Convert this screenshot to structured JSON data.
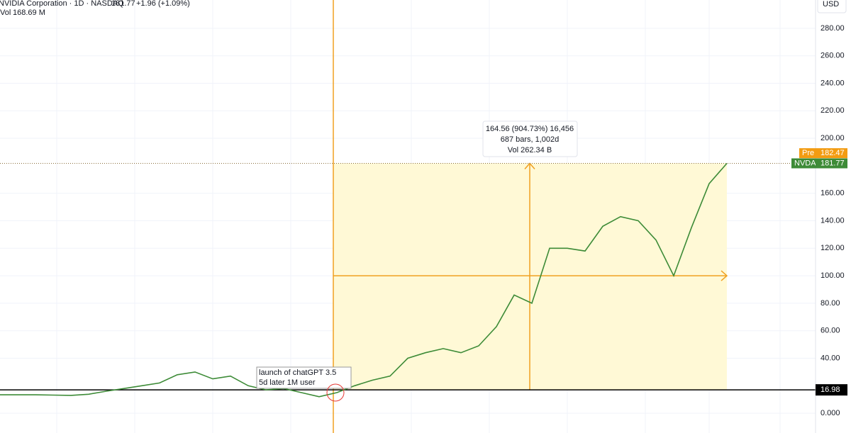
{
  "chart_data": {
    "type": "line",
    "header": {
      "title": "NVIDIA Corporation · 1D · NASDAQ",
      "price": "181.77",
      "change": "+1.96 (+1.09%)",
      "vol_label": "Vol",
      "vol": "168.69 M"
    },
    "currency": "USD",
    "series": [
      {
        "name": "NVDA",
        "color": "#3d8b37",
        "values": [
          13.4,
          13.4,
          13.4,
          13.2,
          13,
          13.8,
          16,
          18,
          20,
          22,
          28,
          30,
          25,
          27,
          20,
          17,
          18,
          15,
          12,
          15,
          20,
          24,
          27,
          40,
          44,
          47,
          44,
          49,
          63,
          86,
          80,
          120,
          120,
          118,
          136,
          143,
          140,
          126,
          100,
          135,
          167,
          181.77
        ]
      }
    ],
    "last": 181.77,
    "pre": {
      "name": "Pre",
      "value": 182.47
    },
    "level": 16.98,
    "ylim": [
      -14.4,
      300.6
    ],
    "yticks": [
      {
        "value": 0,
        "label": "0.000"
      },
      {
        "value": 40,
        "label": "40.00"
      },
      {
        "value": 60,
        "label": "60.00"
      },
      {
        "value": 80,
        "label": "80.00"
      },
      {
        "value": 100,
        "label": "100.00"
      },
      {
        "value": 120,
        "label": "120.00"
      },
      {
        "value": 140,
        "label": "140.00"
      },
      {
        "value": 160,
        "label": "160.00"
      },
      {
        "value": 200,
        "label": "200.00"
      },
      {
        "value": 220,
        "label": "220.00"
      },
      {
        "value": 240,
        "label": "240.00"
      },
      {
        "value": 260,
        "label": "260.00"
      },
      {
        "value": 280,
        "label": "280.00"
      }
    ],
    "grid": true,
    "measurement": [
      "164.56 (904.73%) 16,456",
      "687 bars, 1,002d",
      "Vol 262.34 B"
    ],
    "annotation": [
      "launch of chatGPT 3.5",
      "5d later 1M user"
    ]
  }
}
